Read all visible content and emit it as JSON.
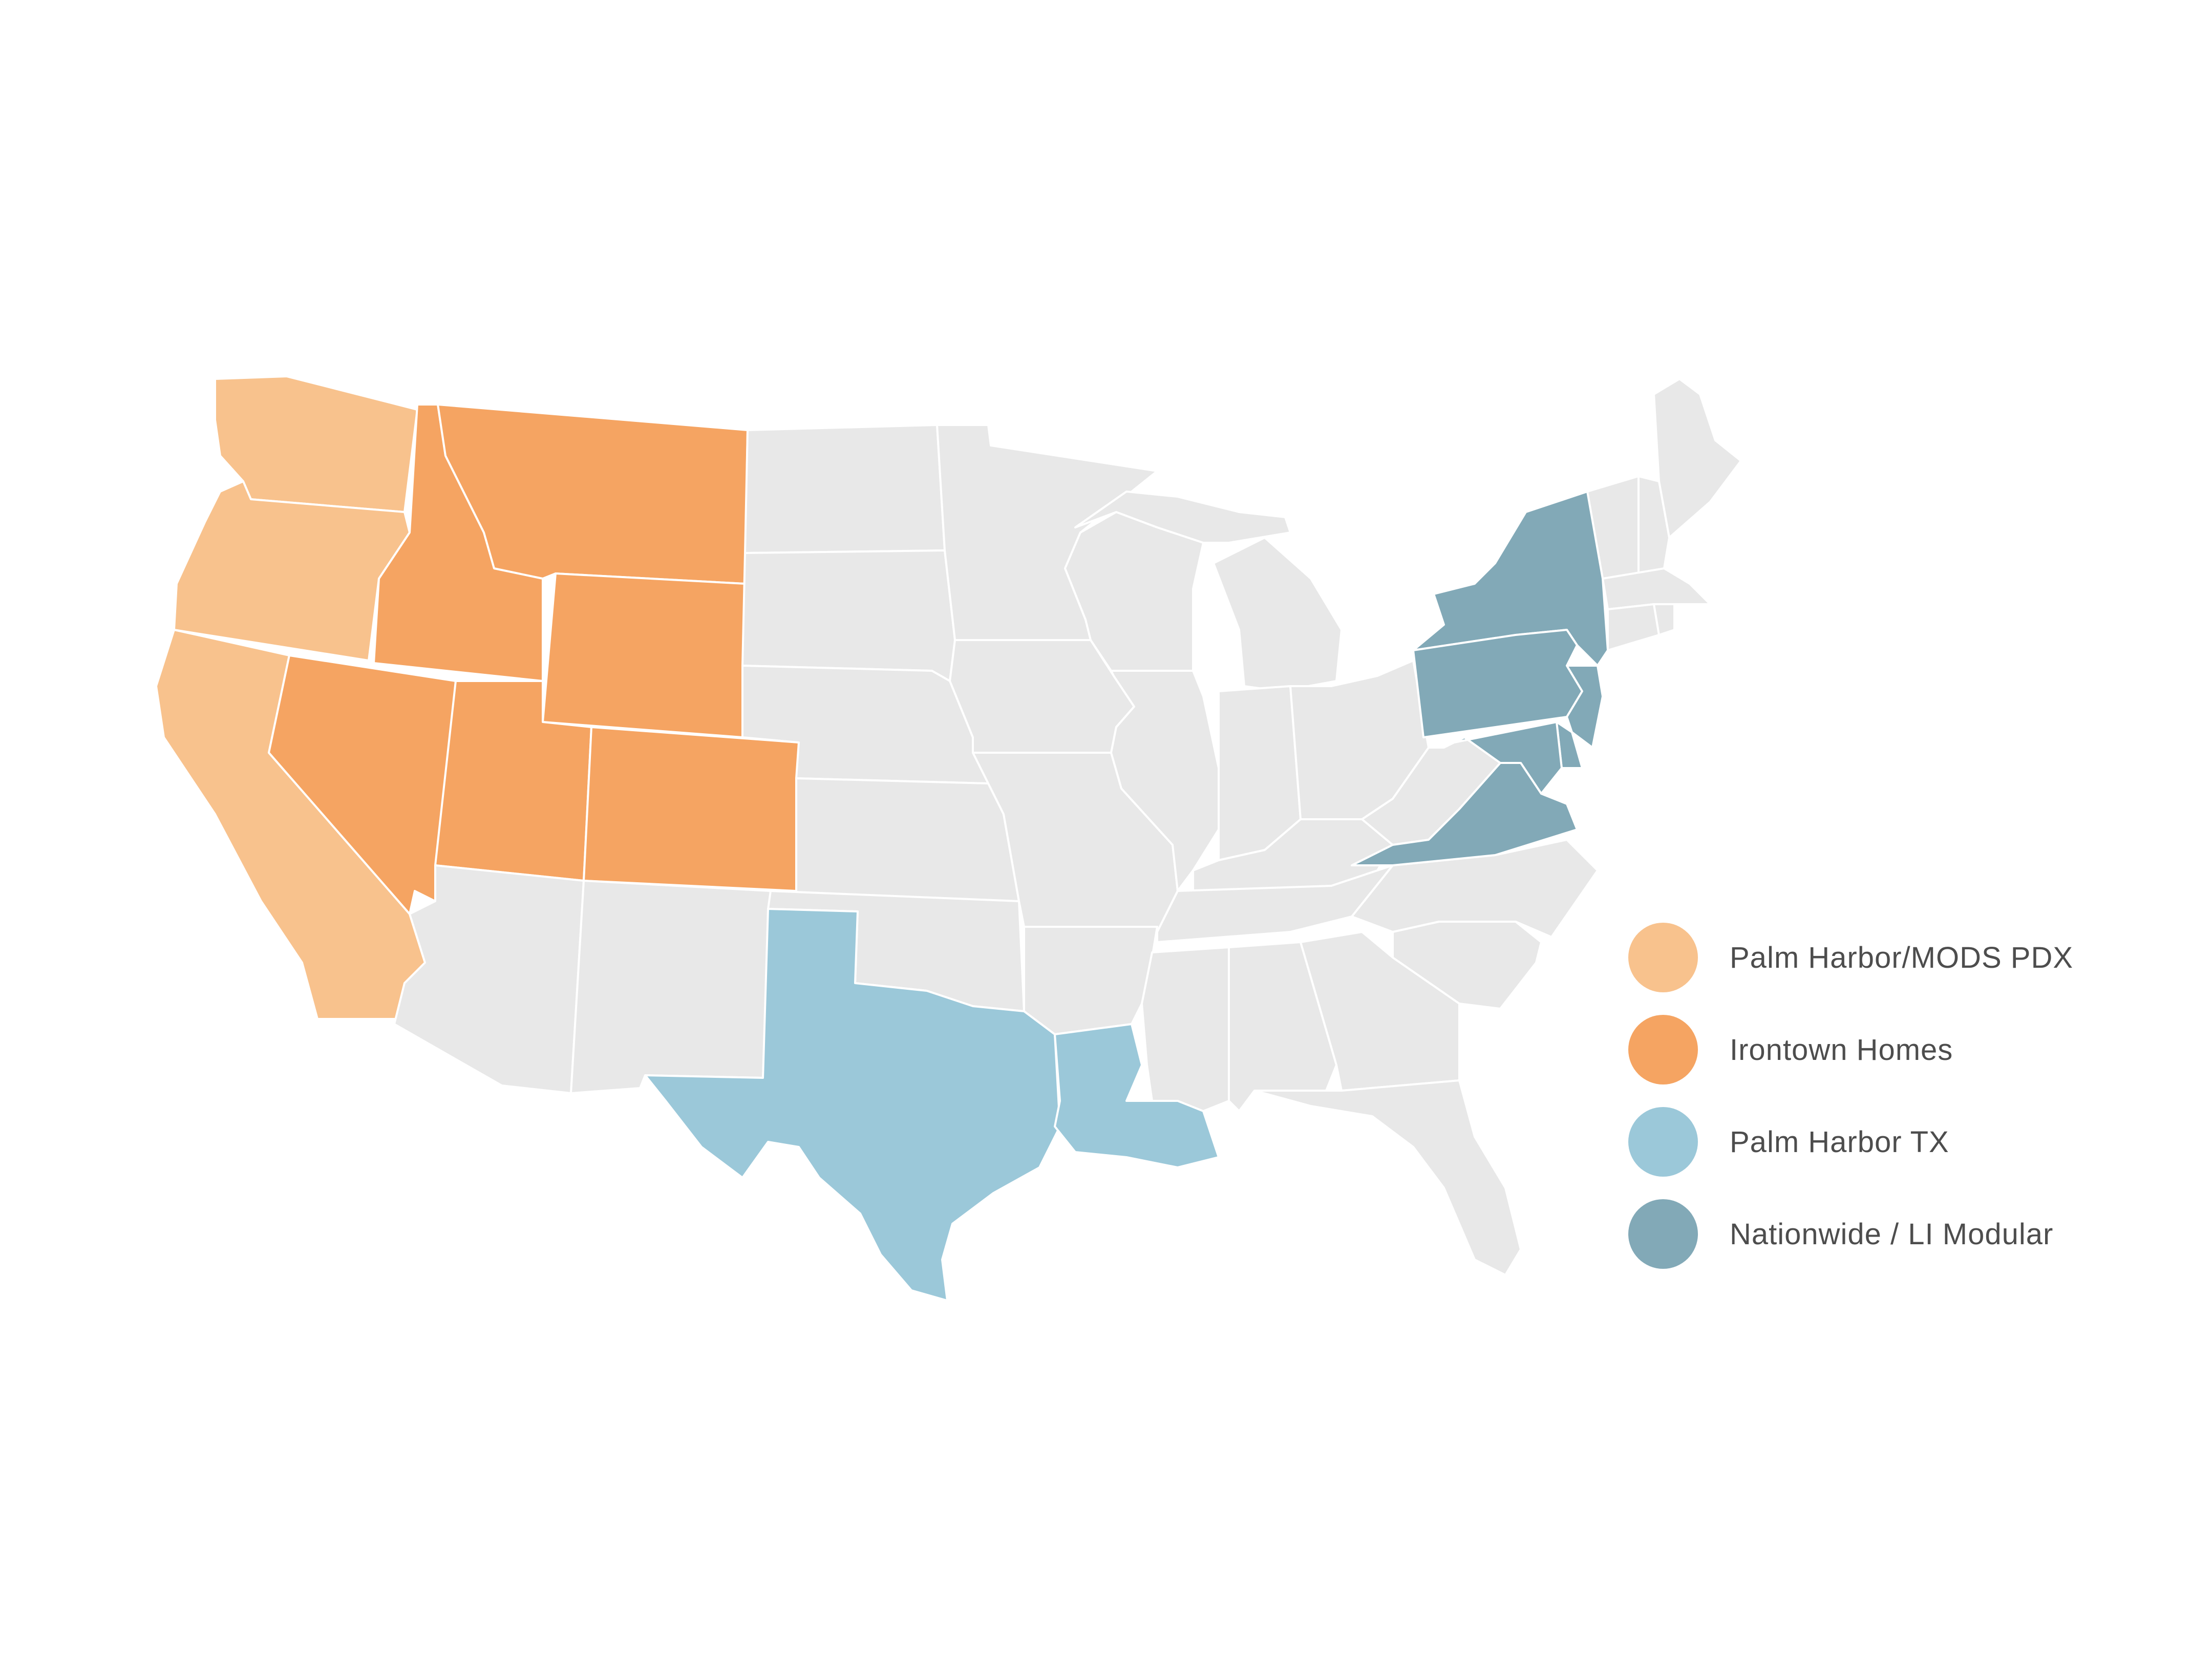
{
  "map": {
    "regions": [
      {
        "name": "Palm Harbor/MODS PDX",
        "color": "#f8c28d",
        "states": [
          "WA",
          "OR",
          "CA"
        ]
      },
      {
        "name": "Irontown Homes",
        "color": "#f5a462",
        "states": [
          "MT",
          "ID",
          "WY",
          "NV",
          "UT",
          "CO"
        ]
      },
      {
        "name": "Palm Harbor TX",
        "color": "#9bc8d9",
        "states": [
          "TX",
          "LA"
        ]
      },
      {
        "name": "Nationwide / LI Modular",
        "color": "#82a9b7",
        "states": [
          "NY",
          "PA",
          "NJ",
          "DE",
          "MD",
          "VA"
        ]
      }
    ],
    "default_state_color": "#e8e8e8",
    "border_color": "#ffffff"
  },
  "legend": {
    "items": [
      {
        "label": "Palm Harbor/MODS PDX",
        "color": "#f8c28d"
      },
      {
        "label": "Irontown Homes",
        "color": "#f5a462"
      },
      {
        "label": "Palm Harbor TX",
        "color": "#9bc8d9"
      },
      {
        "label": "Nationwide / LI Modular",
        "color": "#82a9b7"
      }
    ]
  }
}
